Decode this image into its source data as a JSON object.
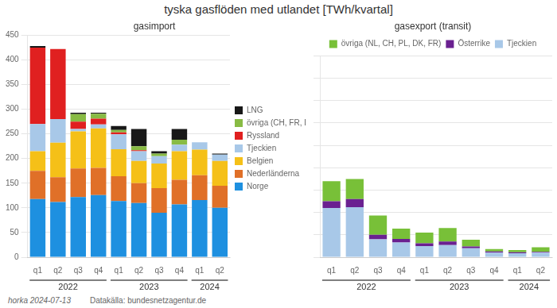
{
  "title": "tyska gasflöden med utlandet [TWh/kvartal]",
  "annotations": [
    "horka 2024-07-13",
    "Datakälla: bundesnetzagentur.de"
  ],
  "chart_data": [
    {
      "type": "bar",
      "title": "gasimport",
      "stacked": true,
      "grid": true,
      "legend": "right",
      "categories": [
        "q1",
        "q2",
        "q3",
        "q4",
        "q1",
        "q2",
        "q3",
        "q4",
        "q1",
        "q2"
      ],
      "years": [
        "2022",
        "2022",
        "2022",
        "2022",
        "2023",
        "2023",
        "2023",
        "2023",
        "2024",
        "2024"
      ],
      "ylim": [
        0,
        450
      ],
      "yticks": [
        0,
        50,
        100,
        150,
        200,
        250,
        300,
        350,
        400,
        450
      ],
      "series": [
        {
          "name": "Norge",
          "color": "#1e90e0",
          "values": [
            118,
            112,
            122,
            126,
            114,
            110,
            90,
            107,
            116,
            100
          ]
        },
        {
          "name": "Nederländerna",
          "color": "#e07028",
          "values": [
            57,
            50,
            58,
            55,
            50,
            40,
            50,
            50,
            50,
            45
          ]
        },
        {
          "name": "Belgien",
          "color": "#f5c018",
          "values": [
            40,
            70,
            75,
            80,
            55,
            45,
            50,
            58,
            52,
            50
          ]
        },
        {
          "name": "Tjeckien",
          "color": "#a8c8e8",
          "values": [
            55,
            48,
            5,
            8,
            30,
            20,
            15,
            13,
            15,
            13
          ]
        },
        {
          "name": "Ryssland",
          "color": "#e02020",
          "values": [
            155,
            142,
            15,
            12,
            4,
            2,
            0,
            0,
            0,
            0
          ]
        },
        {
          "name": "övriga (CH, FR, PL, AT, DK)",
          "color": "#88bb44",
          "values": [
            0,
            0,
            15,
            10,
            5,
            8,
            5,
            10,
            0,
            0
          ]
        },
        {
          "name": "LNG",
          "color": "#181818",
          "values": [
            3,
            0,
            3,
            2,
            8,
            35,
            5,
            22,
            0,
            2
          ]
        }
      ]
    },
    {
      "type": "bar",
      "title": "gasexport (transit)",
      "stacked": true,
      "grid": true,
      "legend": "top",
      "tick_labels": "x",
      "categories": [
        "q1",
        "q2",
        "q3",
        "q4",
        "q1",
        "q2",
        "q3",
        "q4",
        "q1",
        "q2"
      ],
      "years": [
        "2022",
        "2022",
        "2022",
        "2022",
        "2023",
        "2023",
        "2023",
        "2023",
        "2024",
        "2024"
      ],
      "ylim": [
        0,
        450
      ],
      "yticks": [
        0,
        50,
        100,
        150,
        200,
        250,
        300,
        350,
        400,
        450
      ],
      "series": [
        {
          "name": "Tjeckien",
          "color": "#a8c8e8",
          "values": [
            110,
            112,
            40,
            33,
            25,
            27,
            20,
            10,
            9,
            10
          ]
        },
        {
          "name": "Österrike",
          "color": "#6a2090",
          "values": [
            15,
            18,
            10,
            8,
            6,
            8,
            4,
            3,
            2,
            2
          ]
        },
        {
          "name": "övriga (NL, CH, PL, DK, FR)",
          "color": "#78c038",
          "values": [
            45,
            45,
            43,
            23,
            24,
            30,
            15,
            5,
            5,
            10
          ]
        }
      ]
    }
  ]
}
